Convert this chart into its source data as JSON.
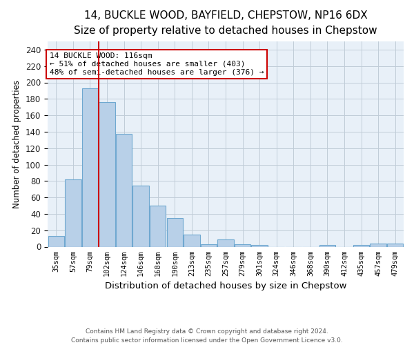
{
  "title": "14, BUCKLE WOOD, BAYFIELD, CHEPSTOW, NP16 6DX",
  "subtitle": "Size of property relative to detached houses in Chepstow",
  "xlabel": "Distribution of detached houses by size in Chepstow",
  "ylabel": "Number of detached properties",
  "bar_labels": [
    "35sqm",
    "57sqm",
    "79sqm",
    "102sqm",
    "124sqm",
    "146sqm",
    "168sqm",
    "190sqm",
    "213sqm",
    "235sqm",
    "257sqm",
    "279sqm",
    "301sqm",
    "324sqm",
    "346sqm",
    "368sqm",
    "390sqm",
    "412sqm",
    "435sqm",
    "457sqm",
    "479sqm"
  ],
  "bar_values": [
    13,
    82,
    193,
    176,
    137,
    74,
    50,
    35,
    15,
    3,
    9,
    3,
    2,
    0,
    0,
    0,
    2,
    0,
    2,
    4,
    4
  ],
  "bar_color": "#b8d0e8",
  "bar_edge_color": "#6fa8d0",
  "property_line_x": 2.5,
  "property_line_color": "#cc0000",
  "annotation_line1": "14 BUCKLE WOOD: 116sqm",
  "annotation_line2": "← 51% of detached houses are smaller (403)",
  "annotation_line3": "48% of semi-detached houses are larger (376) →",
  "annotation_box_color": "#ffffff",
  "annotation_box_edge_color": "#cc0000",
  "ylim": [
    0,
    250
  ],
  "yticks": [
    0,
    20,
    40,
    60,
    80,
    100,
    120,
    140,
    160,
    180,
    200,
    220,
    240
  ],
  "footer_line1": "Contains HM Land Registry data © Crown copyright and database right 2024.",
  "footer_line2": "Contains public sector information licensed under the Open Government Licence v3.0.",
  "bg_color": "#ffffff",
  "plot_bg_color": "#e8f0f8",
  "grid_color": "#c0ccd8",
  "title_fontsize": 11,
  "subtitle_fontsize": 10
}
